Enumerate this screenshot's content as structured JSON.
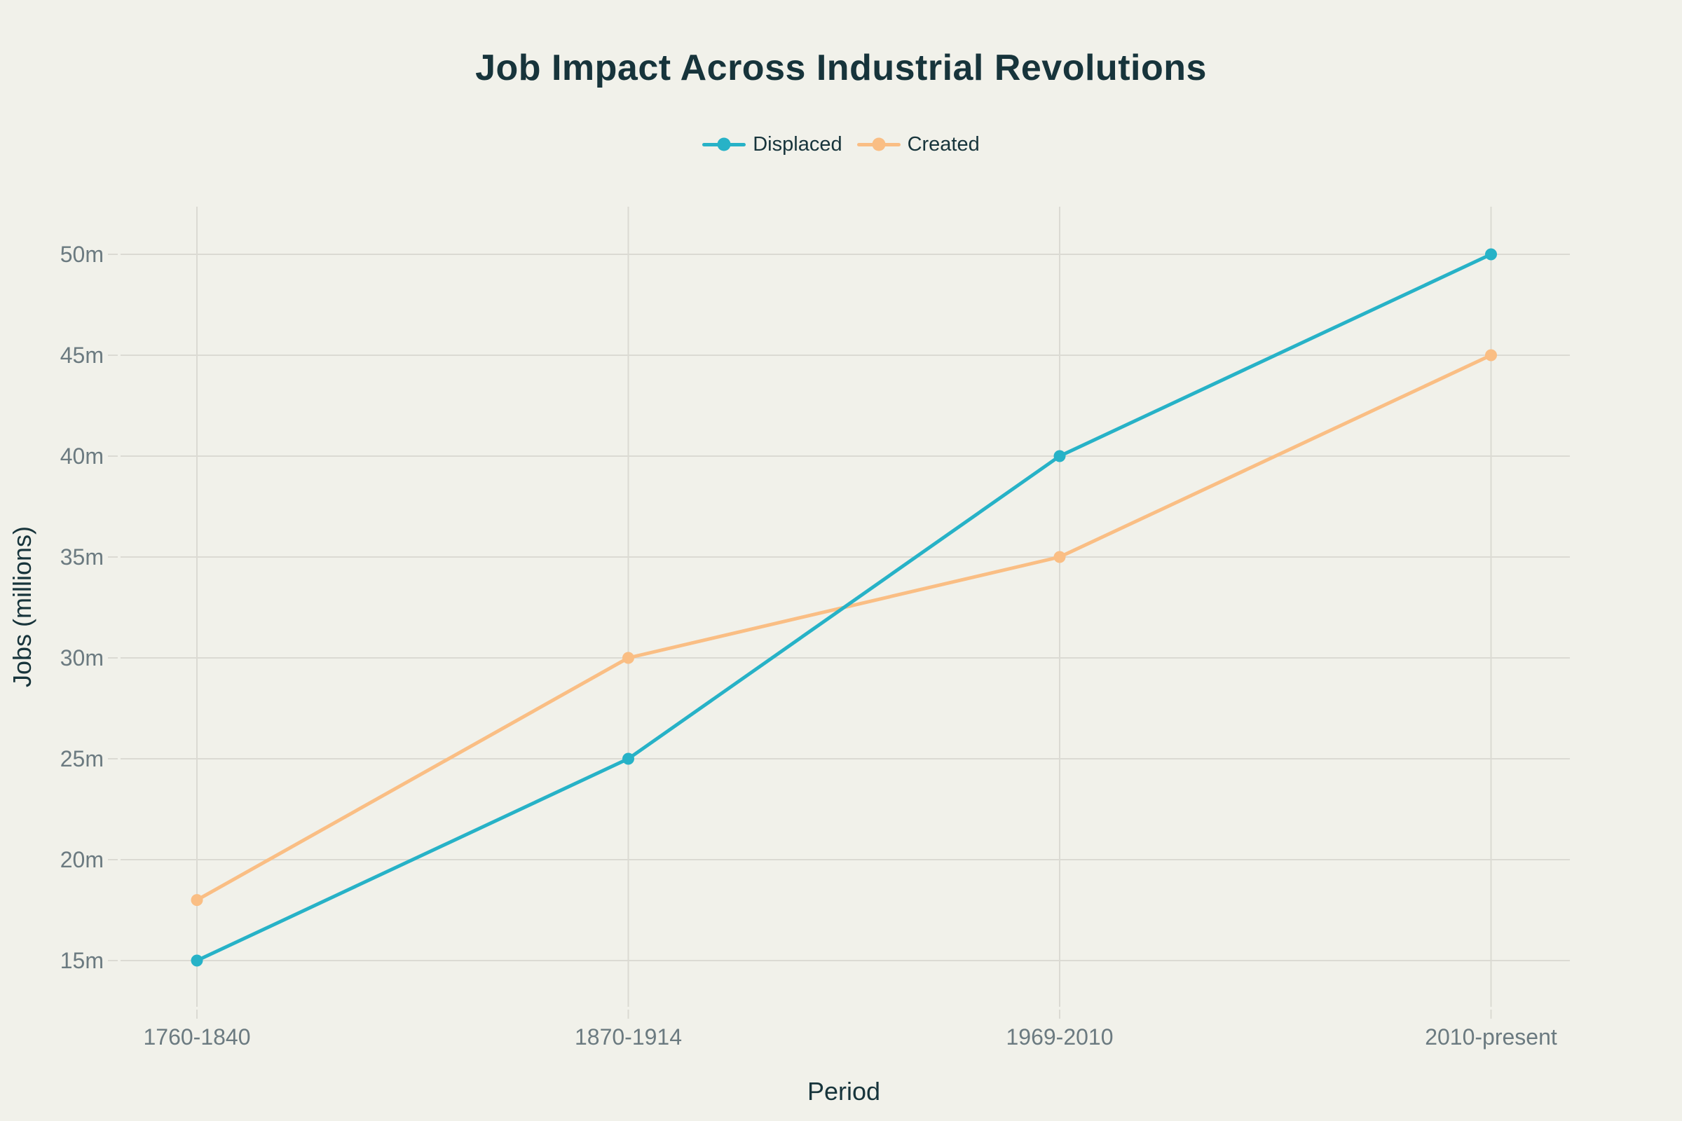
{
  "title": "Job Impact Across Industrial Revolutions",
  "chart_data": {
    "type": "line",
    "title": "Job Impact Across Industrial Revolutions",
    "xlabel": "Period",
    "ylabel": "Jobs (millions)",
    "categories": [
      "1760-1840",
      "1870-1914",
      "1969-2010",
      "2010-present"
    ],
    "series": [
      {
        "name": "Displaced",
        "color": "#27b2c7",
        "values": [
          15,
          25,
          40,
          50
        ]
      },
      {
        "name": "Created",
        "color": "#fabe84",
        "values": [
          18,
          30,
          35,
          45
        ]
      }
    ],
    "yticks": [
      15,
      20,
      25,
      30,
      35,
      40,
      45,
      50
    ],
    "ytick_suffix": "m",
    "ylim": [
      12.5,
      52.5
    ],
    "grid": true,
    "legend_position": "top-center",
    "marker": "circle"
  },
  "colors": {
    "background": "#f1f1ea",
    "grid": "#dbdad3",
    "tick_label": "#6b7a80",
    "text_dark": "#17343b",
    "displaced": "#27b2c7",
    "created": "#fabe84"
  }
}
